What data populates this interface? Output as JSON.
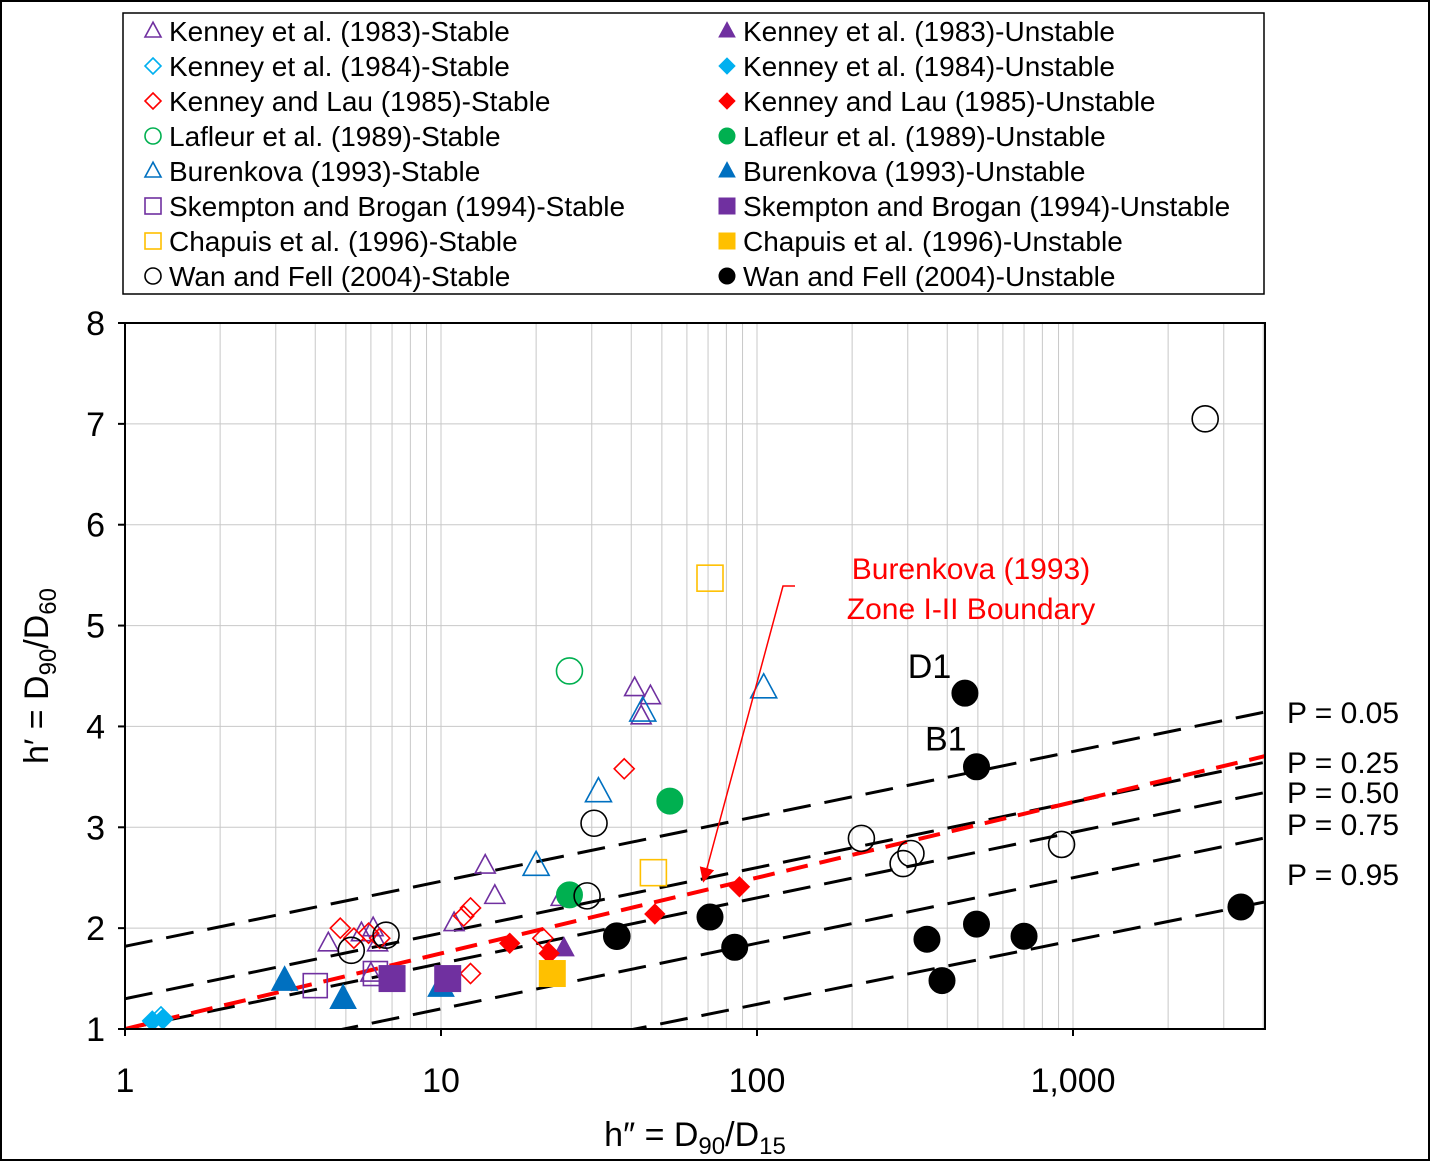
{
  "chart_data": {
    "type": "scatter",
    "x_scale": "log",
    "xlim": [
      1,
      4000
    ],
    "ylim": [
      1,
      8
    ],
    "xlabel": "h″ = D",
    "xlabel_sub": "90",
    "xlabel_mid": "/D",
    "xlabel_sub2": "15",
    "ylabel": "h′ = D",
    "ylabel_sub": "90",
    "ylabel_mid": "/D",
    "ylabel_sub2": "60",
    "x_ticks": [
      {
        "value": 1,
        "label": "1"
      },
      {
        "value": 10,
        "label": "10"
      },
      {
        "value": 100,
        "label": "100"
      },
      {
        "value": 1000,
        "label": "1,000"
      }
    ],
    "y_ticks": [
      {
        "value": 1,
        "label": "1"
      },
      {
        "value": 2,
        "label": "2"
      },
      {
        "value": 3,
        "label": "3"
      },
      {
        "value": 4,
        "label": "4"
      },
      {
        "value": 5,
        "label": "5"
      },
      {
        "value": 6,
        "label": "6"
      },
      {
        "value": 7,
        "label": "7"
      },
      {
        "value": 8,
        "label": "8"
      }
    ],
    "grid": true,
    "legend_position": "top",
    "series": [
      {
        "name": "Kenney et al. (1983)-Stable",
        "marker": "triangle",
        "filled": false,
        "color": "#7030A0",
        "size": 10,
        "points": [
          [
            4.4,
            1.85
          ],
          [
            5.6,
            1.95
          ],
          [
            6.1,
            2.0
          ],
          [
            6.3,
            1.85
          ],
          [
            13.8,
            2.62
          ],
          [
            14.8,
            2.32
          ],
          [
            41,
            4.38
          ],
          [
            46,
            4.3
          ],
          [
            43,
            4.1
          ],
          [
            11,
            2.05
          ],
          [
            6,
            1.55
          ],
          [
            24,
            2.3
          ]
        ]
      },
      {
        "name": "Kenney et al. (1983)-Unstable",
        "marker": "triangle",
        "filled": true,
        "color": "#7030A0",
        "size": 10,
        "points": [
          [
            24.5,
            1.8
          ]
        ]
      },
      {
        "name": "Kenney et al. (1984)-Stable",
        "marker": "diamond",
        "filled": false,
        "color": "#00B0F0",
        "size": 10,
        "points": [
          [
            1.3,
            1.12
          ]
        ]
      },
      {
        "name": "Kenney et al. (1984)-Unstable",
        "marker": "diamond",
        "filled": true,
        "color": "#00B0F0",
        "size": 10,
        "points": [
          [
            1.22,
            1.08
          ],
          [
            1.32,
            1.1
          ]
        ]
      },
      {
        "name": "Kenney and Lau (1985)-Stable",
        "marker": "diamond",
        "filled": false,
        "color": "#FF0000",
        "size": 10,
        "points": [
          [
            4.8,
            2.0
          ],
          [
            5.3,
            1.9
          ],
          [
            5.9,
            1.95
          ],
          [
            6.4,
            1.9
          ],
          [
            11.8,
            2.12
          ],
          [
            12.4,
            2.2
          ],
          [
            12.4,
            1.55
          ],
          [
            21,
            1.9
          ],
          [
            38,
            3.58
          ]
        ]
      },
      {
        "name": "Kenney and Lau (1985)-Unstable",
        "marker": "diamond",
        "filled": true,
        "color": "#FF0000",
        "size": 10,
        "points": [
          [
            16.5,
            1.85
          ],
          [
            22,
            1.75
          ],
          [
            35.5,
            1.92
          ],
          [
            47.5,
            2.14
          ],
          [
            88,
            2.41
          ]
        ]
      },
      {
        "name": "Lafleur et al. (1989)-Stable",
        "marker": "circle",
        "filled": false,
        "color": "#00B050",
        "size": 13,
        "points": [
          [
            25.5,
            4.55
          ]
        ]
      },
      {
        "name": "Lafleur et al. (1989)-Unstable",
        "marker": "circle",
        "filled": true,
        "color": "#00B050",
        "size": 13,
        "points": [
          [
            25.5,
            2.33
          ],
          [
            53,
            3.26
          ]
        ]
      },
      {
        "name": "Burenkova (1993)-Stable",
        "marker": "triangle",
        "filled": false,
        "color": "#0070C0",
        "size": 13,
        "points": [
          [
            20,
            2.62
          ],
          [
            31.5,
            3.35
          ],
          [
            43.5,
            4.15
          ],
          [
            105,
            4.38
          ]
        ]
      },
      {
        "name": "Burenkova (1993)-Unstable",
        "marker": "triangle",
        "filled": true,
        "color": "#0070C0",
        "size": 13,
        "points": [
          [
            3.2,
            1.48
          ],
          [
            4.9,
            1.3
          ],
          [
            10,
            1.42
          ]
        ]
      },
      {
        "name": "Skempton and Brogan (1994)-Stable",
        "marker": "square",
        "filled": false,
        "color": "#7030A0",
        "size": 12,
        "points": [
          [
            4,
            1.43
          ],
          [
            6.2,
            1.55
          ]
        ]
      },
      {
        "name": "Skempton and Brogan (1994)-Unstable",
        "marker": "square",
        "filled": true,
        "color": "#7030A0",
        "size": 13,
        "points": [
          [
            7,
            1.5
          ],
          [
            10.5,
            1.5
          ]
        ]
      },
      {
        "name": "Chapuis et al. (1996)-Stable",
        "marker": "square",
        "filled": false,
        "color": "#FFC000",
        "size": 13,
        "points": [
          [
            71,
            5.47
          ],
          [
            47,
            2.55
          ]
        ]
      },
      {
        "name": "Chapuis et al. (1996)-Unstable",
        "marker": "square",
        "filled": true,
        "color": "#FFC000",
        "size": 13,
        "points": [
          [
            22.5,
            1.55
          ]
        ]
      },
      {
        "name": "Wan and Fell (2004)-Stable",
        "marker": "circle",
        "filled": false,
        "color": "#000000",
        "size": 13,
        "points": [
          [
            5.2,
            1.78
          ],
          [
            6.7,
            1.93
          ],
          [
            29,
            2.32
          ],
          [
            30.5,
            3.04
          ],
          [
            36,
            1.92
          ],
          [
            214,
            2.89
          ],
          [
            290,
            2.64
          ],
          [
            307,
            2.74
          ],
          [
            920,
            2.83
          ],
          [
            2620,
            7.05
          ]
        ]
      },
      {
        "name": "Wan and Fell (2004)-Unstable",
        "marker": "circle",
        "filled": true,
        "color": "#000000",
        "size": 13,
        "points": [
          [
            36,
            1.92
          ],
          [
            71,
            2.11
          ],
          [
            85,
            1.81
          ],
          [
            345,
            1.89
          ],
          [
            385,
            1.48
          ],
          [
            455,
            4.33
          ],
          [
            495,
            3.6
          ],
          [
            495,
            2.04
          ],
          [
            700,
            1.92
          ],
          [
            3400,
            2.21
          ]
        ]
      }
    ],
    "probability_lines": [
      {
        "label": "P = 0.05",
        "intercept": 1.82,
        "slope": 0.644
      },
      {
        "label": "P = 0.25",
        "intercept": 1.3,
        "slope": 0.65
      },
      {
        "label": "P = 0.50",
        "intercept": 1.0,
        "slope": 0.65
      },
      {
        "label": "P = 0.75",
        "intercept": 0.55,
        "slope": 0.65
      },
      {
        "label": "P = 0.95",
        "intercept": -0.02,
        "slope": 0.632
      }
    ],
    "boundary": {
      "intercept": 1.0,
      "slope": 0.75,
      "color": "#FF0000",
      "label_lines": [
        "Burenkova (1993)",
        "Zone I-II Boundary"
      ],
      "arrow_to": [
        65,
        2.4
      ]
    },
    "annotations": [
      {
        "text": "D1",
        "x": 300,
        "y": 4.48
      },
      {
        "text": "B1",
        "x": 340,
        "y": 3.76
      }
    ]
  }
}
